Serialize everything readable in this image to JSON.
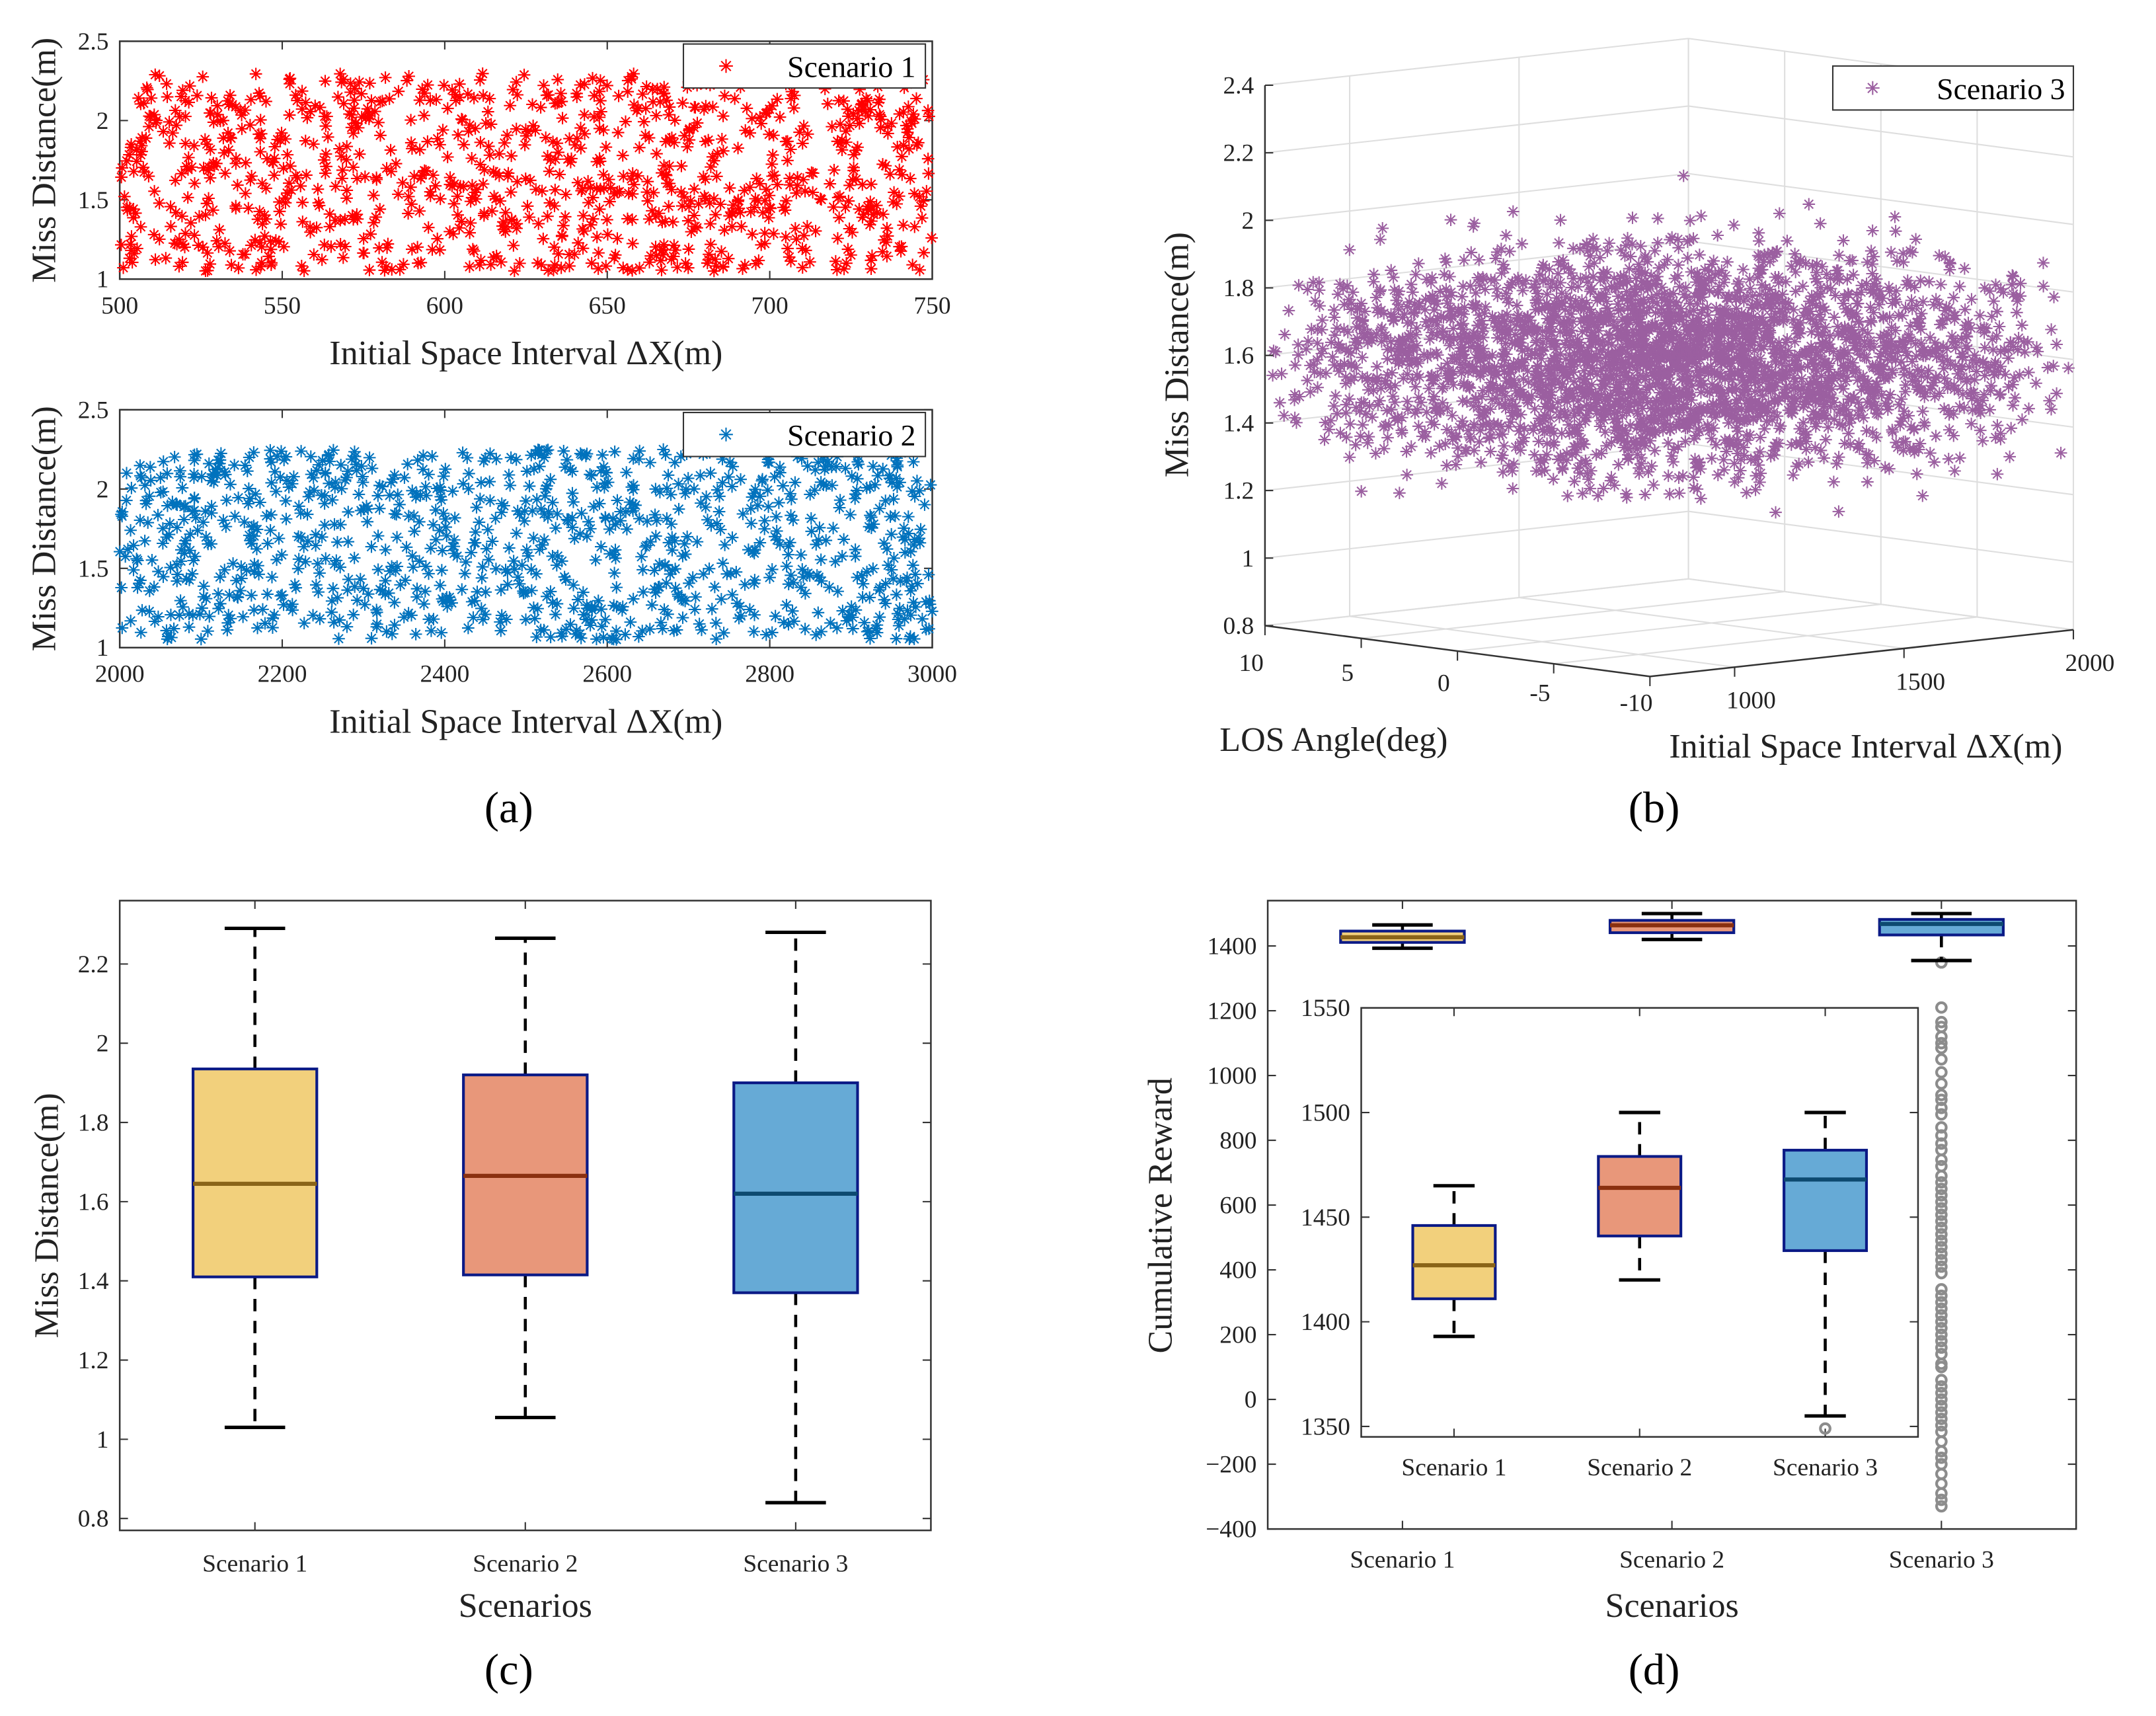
{
  "panel_labels": {
    "a": "(a)",
    "b": "(b)",
    "c": "(c)",
    "d": "(d)"
  },
  "colors": {
    "scenario1": "#ff0000",
    "scenario2": "#0072bd",
    "scenario3": "#9b5fa0",
    "box1": "#f2d07c",
    "box2": "#e8977a",
    "box3": "#66aad6",
    "box_edge": "#0b1a86",
    "median1": "#8a6418",
    "median2": "#8a3010",
    "median3": "#0d4a70",
    "outlier": "#8c8c8c"
  },
  "chart_data": [
    {
      "id": "a1",
      "type": "scatter",
      "marker": "asterisk",
      "xlabel": "Initial Space Interval ΔX(m)",
      "ylabel": "Miss Distance(m)",
      "xlim": [
        500,
        750
      ],
      "ylim": [
        1,
        2.5
      ],
      "xticks": [
        "500",
        "550",
        "600",
        "650",
        "700",
        "750"
      ],
      "xtick_values": [
        500,
        550,
        600,
        650,
        700,
        750
      ],
      "yticks": [
        "1",
        "1.5",
        "2",
        "2.5"
      ],
      "ytick_values": [
        1,
        1.5,
        2,
        2.5
      ],
      "legend": {
        "entries": [
          "Scenario 1"
        ],
        "placement": "top-right"
      },
      "series": [
        {
          "name": "Scenario 1",
          "n_points": 1000,
          "x_range": [
            500,
            750
          ],
          "y_range": [
            1.05,
            2.3
          ]
        }
      ]
    },
    {
      "id": "a2",
      "type": "scatter",
      "marker": "asterisk",
      "xlabel": "Initial Space Interval ΔX(m)",
      "ylabel": "Miss Distance(m)",
      "xlim": [
        2000,
        3000
      ],
      "ylim": [
        1,
        2.5
      ],
      "xticks": [
        "2000",
        "2200",
        "2400",
        "2600",
        "2800",
        "3000"
      ],
      "xtick_values": [
        2000,
        2200,
        2400,
        2600,
        2800,
        3000
      ],
      "yticks": [
        "1",
        "1.5",
        "2",
        "2.5"
      ],
      "ytick_values": [
        1,
        1.5,
        2,
        2.5
      ],
      "legend": {
        "entries": [
          "Scenario 2"
        ],
        "placement": "top-right"
      },
      "series": [
        {
          "name": "Scenario 2",
          "n_points": 1000,
          "x_range": [
            2000,
            3000
          ],
          "y_range": [
            1.05,
            2.25
          ]
        }
      ]
    },
    {
      "id": "b",
      "type": "scatter",
      "marker": "asterisk",
      "dimensions": 3,
      "xlabel": "Initial Space Interval ΔX(m)",
      "ylabel": "LOS Angle(deg)",
      "zlabel": "Miss Distance(m)",
      "xlim": [
        750,
        2000
      ],
      "ylim": [
        -10,
        10
      ],
      "zlim": [
        0.8,
        2.4
      ],
      "xticks": [
        "1000",
        "1500",
        "2000"
      ],
      "xtick_values": [
        1000,
        1500,
        2000
      ],
      "yticks": [
        "10",
        "5",
        "0",
        "-5",
        "-10"
      ],
      "ytick_values": [
        10,
        5,
        0,
        -5,
        -10
      ],
      "zticks": [
        "0.8",
        "1",
        "1.2",
        "1.4",
        "1.6",
        "1.8",
        "2",
        "2.2",
        "2.4"
      ],
      "ztick_values": [
        0.8,
        1,
        1.2,
        1.4,
        1.6,
        1.8,
        2,
        2.2,
        2.4
      ],
      "grid": true,
      "legend": {
        "entries": [
          "Scenario 3"
        ],
        "placement": "top-right"
      },
      "series": [
        {
          "name": "Scenario 3",
          "n_points": 3000,
          "x_range": [
            750,
            2000
          ],
          "y_range": [
            -10,
            10
          ],
          "z_mean": 1.6,
          "z_range": [
            0.85,
            2.35
          ]
        }
      ]
    },
    {
      "id": "c",
      "type": "box",
      "xlabel": "Scenarios",
      "ylabel": "Miss Distance(m)",
      "categories": [
        "Scenario 1",
        "Scenario 2",
        "Scenario 3"
      ],
      "ylim": [
        0.77,
        2.36
      ],
      "yticks": [
        "0.8",
        "1",
        "1.2",
        "1.4",
        "1.6",
        "1.8",
        "2",
        "2.2"
      ],
      "ytick_values": [
        0.8,
        1,
        1.2,
        1.4,
        1.6,
        1.8,
        2,
        2.2
      ],
      "boxes": [
        {
          "min": 1.03,
          "q1": 1.41,
          "median": 1.645,
          "q3": 1.935,
          "max": 2.29
        },
        {
          "min": 1.055,
          "q1": 1.415,
          "median": 1.665,
          "q3": 1.92,
          "max": 2.265
        },
        {
          "min": 0.84,
          "q1": 1.37,
          "median": 1.62,
          "q3": 1.9,
          "max": 2.28
        }
      ]
    },
    {
      "id": "d",
      "type": "box",
      "xlabel": "Scenarios",
      "ylabel": "Cumulative Reward",
      "categories": [
        "Scenario 1",
        "Scenario 2",
        "Scenario 3"
      ],
      "ylim": [
        -400,
        1540
      ],
      "yticks": [
        "−400",
        "−200",
        "0",
        "200",
        "400",
        "600",
        "800",
        "1000",
        "1200",
        "1400"
      ],
      "ytick_values": [
        -400,
        -200,
        0,
        200,
        400,
        600,
        800,
        1000,
        1200,
        1400
      ],
      "boxes": [
        {
          "min": 1393,
          "q1": 1411,
          "median": 1427,
          "q3": 1446,
          "max": 1465,
          "outliers": []
        },
        {
          "min": 1420,
          "q1": 1441,
          "median": 1464,
          "q3": 1479,
          "max": 1500,
          "outliers": []
        },
        {
          "min": 1355,
          "q1": 1434,
          "median": 1468,
          "q3": 1482,
          "max": 1500,
          "outliers": [
            1349,
            1210,
            1165,
            1150,
            1120,
            1100,
            1085,
            1050,
            1010,
            975,
            940,
            925,
            900,
            880,
            840,
            815,
            790,
            770,
            740,
            720,
            690,
            670,
            650,
            630,
            610,
            590,
            570,
            550,
            530,
            510,
            490,
            470,
            450,
            430,
            410,
            390,
            340,
            320,
            300,
            280,
            260,
            240,
            220,
            200,
            180,
            160,
            140,
            110,
            100,
            60,
            40,
            20,
            0,
            -20,
            -40,
            -60,
            -80,
            -100,
            -130,
            -160,
            -180,
            -200,
            -230,
            -260,
            -290,
            -310,
            -330
          ]
        }
      ],
      "inset": {
        "ylim": [
          1345,
          1550
        ],
        "yticks": [
          "1350",
          "1400",
          "1450",
          "1500",
          "1550"
        ],
        "ytick_values": [
          1350,
          1400,
          1450,
          1500,
          1550
        ],
        "categories": [
          "Scenario 1",
          "Scenario 2",
          "Scenario 3"
        ],
        "outliers_scenario3": [
          1349
        ]
      }
    }
  ]
}
